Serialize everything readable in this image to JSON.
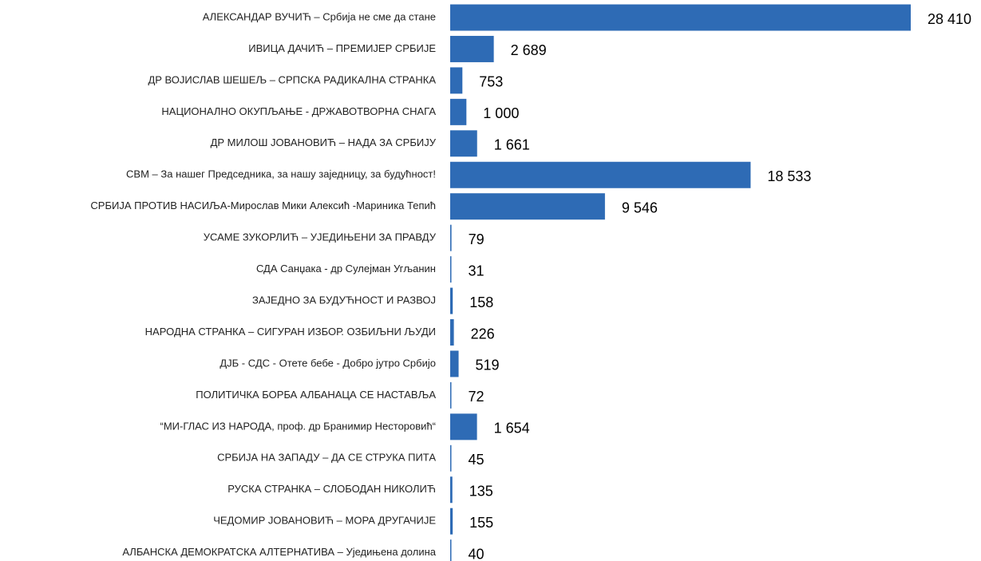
{
  "chart_data": {
    "type": "barh",
    "color": "#2e6bb5",
    "categories": [
      "АЛЕКСАНДАР ВУЧИЋ – Србија не сме да стане",
      "ИВИЦА ДАЧИЋ – ПРЕМИЈЕР СРБИЈЕ",
      "ДР ВОЈИСЛАВ ШЕШЕЉ – СРПСКА РАДИКАЛНА СТРАНКА",
      "НАЦИОНАЛНО ОКУПЉАЊЕ - ДРЖАВОТВОРНА СНАГА",
      "ДР МИЛОШ ЈОВАНОВИЋ – НАДА ЗА СРБИЈУ",
      "СВМ – За  нашег Председника, за нашу заједницу, за будућност!",
      "СРБИЈА ПРОТИВ НАСИЉА-Мирослав Мики Алексић -Мариника Тепић",
      "УСАМЕ ЗУКОРЛИЋ – УЈЕДИЊЕНИ ЗА ПРАВДУ",
      "СДА Санџака - др Сулејман Угљанин",
      "ЗАЈЕДНО ЗА БУДУЋНОСТ И РАЗВОЈ",
      "НАРОДНА СТРАНКА – СИГУРАН ИЗБОР. ОЗБИЉНИ ЉУДИ",
      "ДЈБ - СДС - Отете бебе - Добро јутро Србијо",
      "ПОЛИТИЧКА БОРБА АЛБАНАЦА СЕ НАСТАВЉА",
      "“МИ-ГЛАС ИЗ НАРОДА, проф. др Бранимир Несторовић“",
      "СРБИЈА НА ЗАПАДУ – ДА СЕ СТРУКА ПИТА",
      "РУСКА СТРАНКА – СЛОБОДАН НИКОЛИЋ",
      "ЧЕДОМИР ЈОВАНОВИЋ – МОРА ДРУГАЧИЈЕ",
      "АЛБАНСКА ДЕМОКРАТСКА АЛТЕРНАТИВА – Уједињена долина"
    ],
    "values": [
      28410,
      2689,
      753,
      1000,
      1661,
      18533,
      9546,
      79,
      31,
      158,
      226,
      519,
      72,
      1654,
      45,
      135,
      155,
      40
    ],
    "value_labels": [
      "28 410",
      "2 689",
      "753",
      "1 000",
      "1 661",
      "18 533",
      "9 546",
      "79",
      "31",
      "158",
      "226",
      "519",
      "72",
      "1 654",
      "45",
      "135",
      "155",
      "40"
    ]
  }
}
